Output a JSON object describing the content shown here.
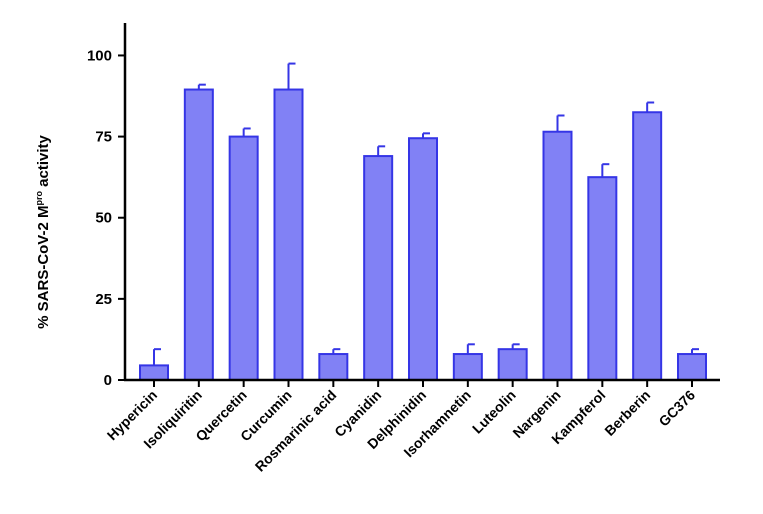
{
  "chart_data": {
    "type": "bar",
    "title": "",
    "xlabel": "",
    "ylabel": {
      "prefix": "% SARS-CoV-2 M",
      "superscript": "pro",
      "suffix": " activity"
    },
    "ylim": [
      0,
      110
    ],
    "yticks": [
      0,
      25,
      50,
      75,
      100
    ],
    "ytick_labels": [
      "0",
      "25",
      "50",
      "75",
      "100"
    ],
    "grid": false,
    "legend": "none",
    "categories": [
      "Hypericin",
      "Isoliquiritin",
      "Quercetin",
      "Curcumin",
      "Rosmarinic acid",
      "Cyanidin",
      "Delphinidin",
      "Isorhamnetin",
      "Luteolin",
      "Nargenin",
      "Kampferol",
      "Berberin",
      "GC376"
    ],
    "values": [
      4.5,
      89.5,
      75,
      89.5,
      8,
      69,
      74.5,
      8,
      9.5,
      76.5,
      62.5,
      82.5,
      8
    ],
    "error_upper": [
      5,
      1.5,
      2.5,
      8,
      1.5,
      3,
      1.5,
      3,
      1.5,
      5,
      4,
      3,
      1.5
    ],
    "colors": {
      "bar_fill": "#8181f5",
      "bar_stroke": "#3535e6",
      "axis": "#000000"
    }
  }
}
